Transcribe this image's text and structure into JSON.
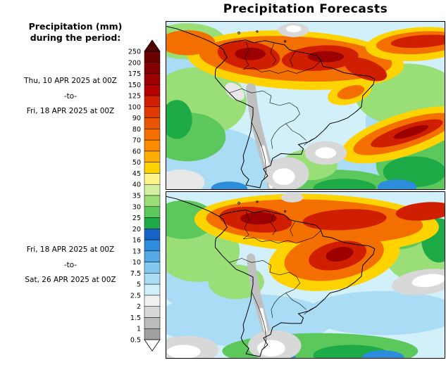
{
  "title": "Precipitation Forecasts",
  "legend": {
    "heading_line1": "Precipitation (mm)",
    "heading_line2": "during the period:",
    "levels": [
      "250",
      "200",
      "175",
      "150",
      "125",
      "100",
      "90",
      "80",
      "70",
      "60",
      "50",
      "45",
      "40",
      "35",
      "30",
      "25",
      "20",
      "16",
      "13",
      "10",
      "7.5",
      "5",
      "2.5",
      "2",
      "1.5",
      "1",
      "0.5"
    ],
    "colors": [
      "#500000",
      "#6b0000",
      "#840000",
      "#9d0000",
      "#b60000",
      "#d01f00",
      "#e03a00",
      "#ea5500",
      "#f37000",
      "#fb8c00",
      "#ffae00",
      "#ffd300",
      "#fff58c",
      "#d2f0a0",
      "#9ade78",
      "#5cc85c",
      "#1eaa46",
      "#1464c8",
      "#2d8cdc",
      "#55aae6",
      "#82c8f0",
      "#aadcf5",
      "#d2f0fa",
      "#f0f0f0",
      "#d8d8d8",
      "#bcbcbc",
      "#a0a0a0",
      "#ffffff"
    ]
  },
  "panels": [
    {
      "name": "week1",
      "period": {
        "start": "Thu, 10 APR 2025 at 00Z",
        "separator": "-to-",
        "end": "Fri, 18 APR 2025 at 00Z"
      }
    },
    {
      "name": "week2",
      "period": {
        "start": "Fri, 18 APR 2025 at 00Z",
        "separator": "-to-",
        "end": "Sat, 26 APR 2025 at 00Z"
      }
    }
  ]
}
